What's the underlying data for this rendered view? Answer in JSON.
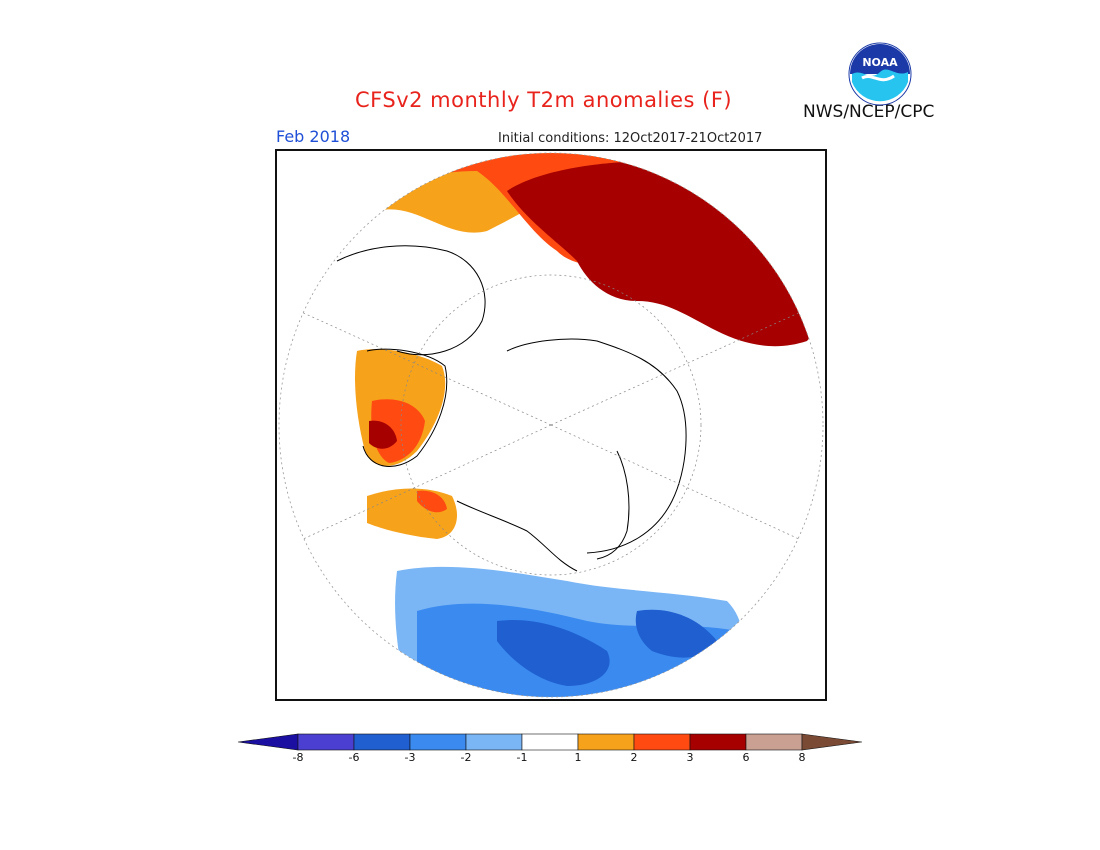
{
  "header": {
    "title": "CFSv2 monthly T2m anomalies (F)",
    "month": "Feb 2018",
    "initial_conditions": "Initial conditions: 12Oct2017-21Oct2017",
    "organization": "NWS/NCEP/CPC",
    "logo_text": "NOAA"
  },
  "colors": {
    "title": "#e8231c",
    "month": "#1f4fd6",
    "land_outline": "#000000",
    "cold_extreme": "#1a0fa0",
    "cold_8": "#4a3fd0",
    "cold_6": "#1f5fd0",
    "cold_3": "#3a8af0",
    "cold_2": "#7ab6f5",
    "neutral": "#ffffff",
    "warm_1": "#f7a21b",
    "warm_2": "#ff4a12",
    "warm_3": "#a60000",
    "warm_6": "#c9a091",
    "warm_extreme": "#7a4a35"
  },
  "colorbar": {
    "labels": [
      "-8",
      "-6",
      "-3",
      "-2",
      "-1",
      "1",
      "2",
      "3",
      "6",
      "8"
    ],
    "bins": [
      "#4a3fd0",
      "#1f5fd0",
      "#3a8af0",
      "#7ab6f5",
      "#ffffff",
      "#f7a21b",
      "#ff4a12",
      "#a60000",
      "#c9a091"
    ],
    "low_arrow": "#1a0fa0",
    "high_arrow": "#7a4a35"
  }
}
